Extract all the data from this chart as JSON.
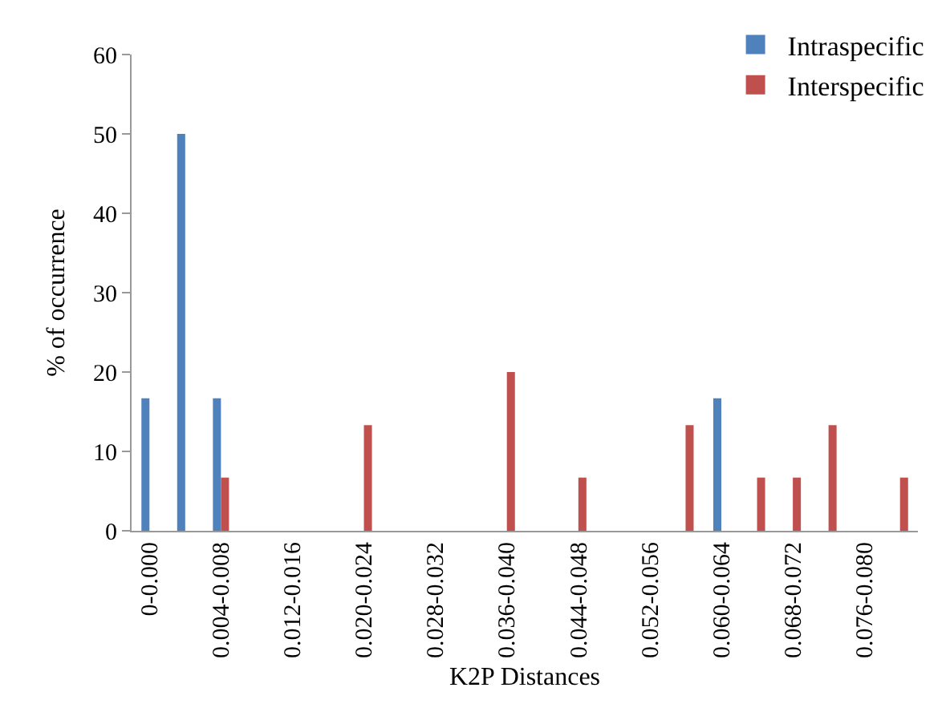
{
  "chart_data": {
    "type": "bar",
    "xlabel": "K2P Distances",
    "ylabel": "% of occurrence",
    "categories": [
      "0-0.000",
      null,
      "0.004-0.008",
      null,
      "0.012-0.016",
      null,
      "0.020-0.024",
      null,
      "0.028-0.032",
      null,
      "0.036-0.040",
      null,
      "0.044-0.048",
      null,
      "0.052-0.056",
      null,
      "0.060-0.064",
      null,
      "0.068-0.072",
      null,
      "0.076-0.080",
      null
    ],
    "series": [
      {
        "name": "Intraspecific",
        "color": "#4f81bd",
        "values": [
          16.7,
          50,
          16.7,
          null,
          null,
          null,
          null,
          null,
          null,
          null,
          null,
          null,
          null,
          null,
          null,
          null,
          16.7,
          null,
          null,
          null,
          null,
          null
        ]
      },
      {
        "name": "Interspecific",
        "color": "#c0504d",
        "values": [
          null,
          null,
          6.7,
          null,
          null,
          null,
          13.3,
          null,
          null,
          null,
          20,
          null,
          6.7,
          null,
          null,
          13.3,
          null,
          6.7,
          6.7,
          13.3,
          null,
          6.7
        ]
      }
    ],
    "ylim": [
      0,
      60
    ],
    "yticks": [
      0,
      10,
      20,
      30,
      40,
      50,
      60
    ],
    "grid": false,
    "legend": "top right"
  }
}
